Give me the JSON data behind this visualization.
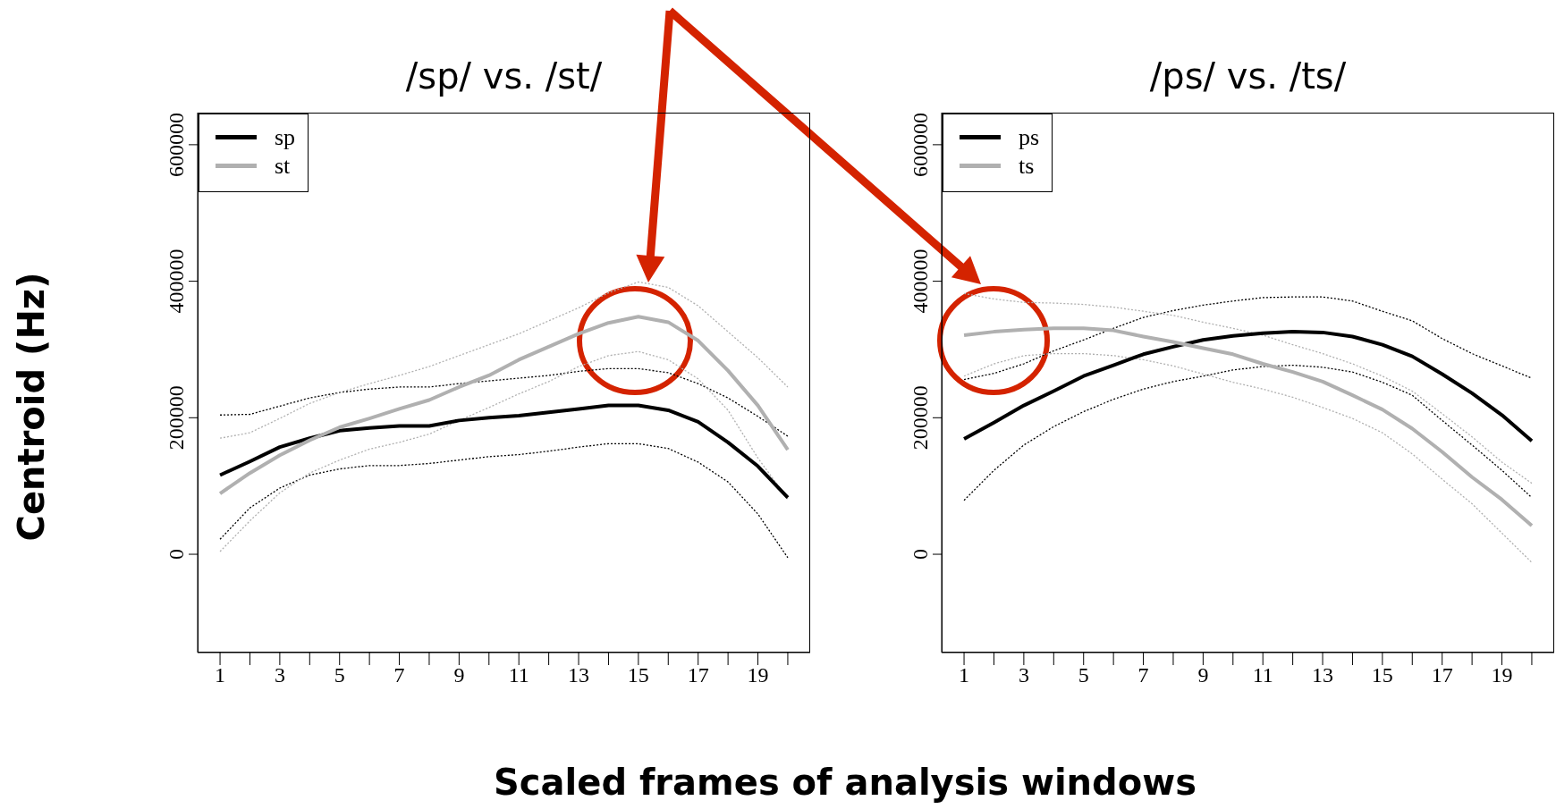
{
  "chart_data": [
    {
      "type": "line",
      "title": "/sp/ vs. /st/",
      "ylabel": "Centroid (Hz)",
      "xlabel": "Scaled frames of analysis windows",
      "legend": "top left",
      "marker": "none",
      "line_style": "solid",
      "x": [
        1,
        2,
        3,
        4,
        5,
        6,
        7,
        8,
        9,
        10,
        11,
        12,
        13,
        14,
        15,
        16,
        17,
        18,
        19,
        20
      ],
      "xlim": [
        0.25,
        20.75
      ],
      "xticks": [
        1,
        {
          "value": 2,
          "label": null
        },
        3,
        {
          "value": 4,
          "label": null
        },
        5,
        {
          "value": 6,
          "label": null
        },
        7,
        {
          "value": 8,
          "label": null
        },
        9,
        {
          "value": 10,
          "label": null
        },
        11,
        {
          "value": 12,
          "label": null
        },
        13,
        {
          "value": 14,
          "label": null
        },
        15,
        {
          "value": 16,
          "label": null
        },
        17,
        {
          "value": 18,
          "label": null
        },
        19,
        {
          "value": 20,
          "label": null
        }
      ],
      "ylim": [
        -144000,
        647000
      ],
      "yticks": [
        0,
        200000,
        400000,
        600000
      ],
      "series": [
        {
          "color": "#000000",
          "line_style": "dotted",
          "values": [
            22000,
            68000,
            97000,
            116000,
            125000,
            130000,
            130000,
            133000,
            138000,
            143000,
            146000,
            151000,
            157000,
            162000,
            162000,
            155000,
            135000,
            106000,
            59000,
            -5000
          ]
        },
        {
          "color": "#000000",
          "line_style": "dotted",
          "values": [
            204000,
            205000,
            217000,
            229000,
            237000,
            242000,
            245000,
            245000,
            250000,
            254000,
            258000,
            262000,
            268000,
            272000,
            272000,
            266000,
            250000,
            229000,
            202000,
            173000
          ]
        },
        {
          "color": "#b0b0b0",
          "line_style": "dotted",
          "values": [
            4000,
            49000,
            90000,
            119000,
            138000,
            154000,
            164000,
            176000,
            196000,
            215000,
            235000,
            253000,
            275000,
            291000,
            297000,
            285000,
            257000,
            211000,
            141000,
            81000
          ]
        },
        {
          "color": "#b0b0b0",
          "line_style": "dotted",
          "values": [
            170000,
            178000,
            199000,
            221000,
            237000,
            250000,
            262000,
            275000,
            291000,
            307000,
            323000,
            342000,
            361000,
            383000,
            399000,
            391000,
            364000,
            326000,
            288000,
            245000
          ]
        },
        {
          "name": "sp",
          "color": "#000000",
          "values": [
            116000,
            136000,
            157000,
            170000,
            181000,
            185000,
            188000,
            188000,
            196000,
            200000,
            203000,
            208000,
            213000,
            218000,
            218000,
            211000,
            194000,
            164000,
            129000,
            83000
          ]
        },
        {
          "name": "st",
          "color": "#b0b0b0",
          "values": [
            89000,
            119000,
            145000,
            167000,
            186000,
            199000,
            213000,
            226000,
            245000,
            262000,
            285000,
            304000,
            323000,
            339000,
            348000,
            340000,
            313000,
            269000,
            218000,
            153000
          ]
        }
      ]
    },
    {
      "type": "line",
      "title": "/ps/ vs. /ts/",
      "legend": "top left",
      "marker": "none",
      "line_style": "solid",
      "x": [
        1,
        2,
        3,
        4,
        5,
        6,
        7,
        8,
        9,
        10,
        11,
        12,
        13,
        14,
        15,
        16,
        17,
        18,
        19,
        20
      ],
      "xlim": [
        0.25,
        20.75
      ],
      "xticks": [
        1,
        {
          "value": 2,
          "label": null
        },
        3,
        {
          "value": 4,
          "label": null
        },
        5,
        {
          "value": 6,
          "label": null
        },
        7,
        {
          "value": 8,
          "label": null
        },
        9,
        {
          "value": 10,
          "label": null
        },
        11,
        {
          "value": 12,
          "label": null
        },
        13,
        {
          "value": 14,
          "label": null
        },
        15,
        {
          "value": 16,
          "label": null
        },
        17,
        {
          "value": 18,
          "label": null
        },
        19,
        {
          "value": 20,
          "label": null
        }
      ],
      "ylim": [
        -144000,
        647000
      ],
      "yticks": [
        0,
        200000,
        400000,
        600000
      ],
      "series": [
        {
          "color": "#000000",
          "line_style": "dotted",
          "values": [
            79000,
            123000,
            160000,
            187000,
            209000,
            227000,
            242000,
            253000,
            261000,
            270000,
            275000,
            277000,
            274000,
            267000,
            252000,
            233000,
            196000,
            160000,
            123000,
            83000
          ]
        },
        {
          "color": "#000000",
          "line_style": "dotted",
          "values": [
            256000,
            265000,
            279000,
            298000,
            314000,
            331000,
            347000,
            357000,
            365000,
            371000,
            376000,
            377000,
            377000,
            371000,
            356000,
            342000,
            316000,
            294000,
            276000,
            258000
          ]
        },
        {
          "color": "#b0b0b0",
          "line_style": "dotted",
          "values": [
            261000,
            279000,
            291000,
            294000,
            294000,
            291000,
            285000,
            276000,
            264000,
            252000,
            242000,
            230000,
            215000,
            199000,
            178000,
            147000,
            110000,
            74000,
            31000,
            -12000
          ]
        },
        {
          "color": "#b0b0b0",
          "line_style": "dotted",
          "values": [
            382000,
            374000,
            369000,
            368000,
            366000,
            362000,
            356000,
            350000,
            340000,
            331000,
            321000,
            307000,
            294000,
            279000,
            261000,
            239000,
            206000,
            172000,
            135000,
            104000
          ]
        },
        {
          "name": "ps",
          "color": "#000000",
          "values": [
            169000,
            193000,
            218000,
            239000,
            261000,
            277000,
            293000,
            304000,
            314000,
            320000,
            324000,
            326000,
            325000,
            319000,
            307000,
            290000,
            264000,
            236000,
            204000,
            166000
          ]
        },
        {
          "name": "ts",
          "color": "#b0b0b0",
          "values": [
            321000,
            326000,
            329000,
            331000,
            331000,
            328000,
            319000,
            311000,
            302000,
            293000,
            279000,
            267000,
            253000,
            233000,
            212000,
            184000,
            150000,
            113000,
            80000,
            42000
          ]
        }
      ]
    }
  ]
}
